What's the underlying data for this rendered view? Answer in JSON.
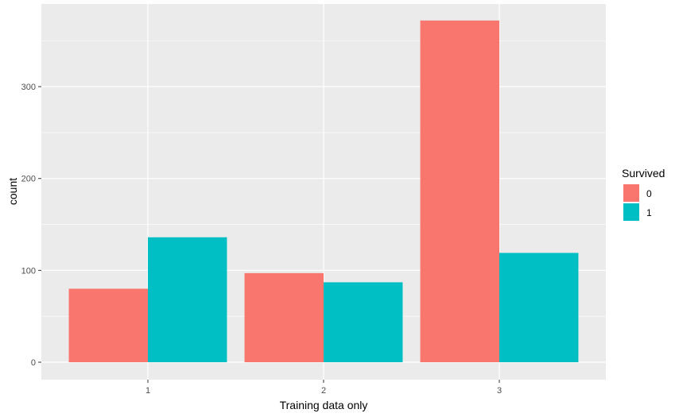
{
  "chart_data": {
    "type": "bar",
    "title": "",
    "xlabel": "Training data only",
    "ylabel": "count",
    "categories": [
      "1",
      "2",
      "3"
    ],
    "series": [
      {
        "name": "0",
        "values": [
          80,
          97,
          372
        ],
        "color": "#F8766D"
      },
      {
        "name": "1",
        "values": [
          136,
          87,
          119
        ],
        "color": "#00BFC4"
      }
    ],
    "ylim": [
      -19,
      390
    ],
    "yticks": [
      0,
      100,
      200,
      300
    ],
    "grid": true,
    "panel_background": "#EBEBEB",
    "grid_color": "#FFFFFF",
    "legend": {
      "title": "Survived",
      "placement": "right"
    }
  }
}
